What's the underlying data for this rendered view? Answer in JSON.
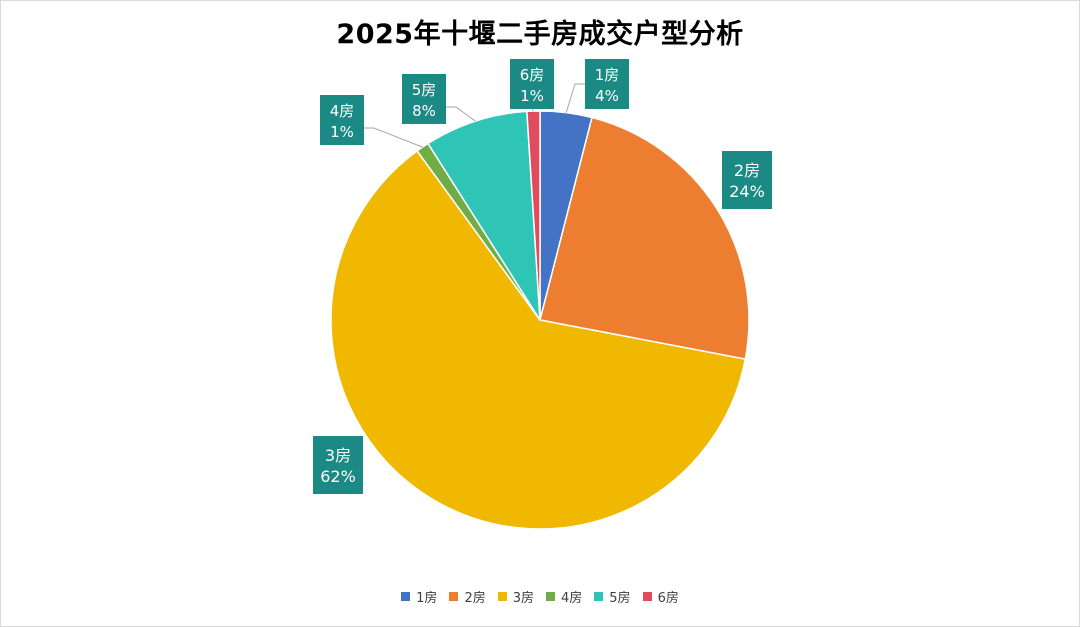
{
  "chart_data": {
    "type": "pie",
    "title": "2025年十堰二手房成交户型分析",
    "categories": [
      "1房",
      "2房",
      "3房",
      "4房",
      "5房",
      "6房"
    ],
    "values": [
      4,
      24,
      62,
      1,
      8,
      1
    ],
    "percent_labels": [
      "4%",
      "24%",
      "62%",
      "1%",
      "8%",
      "1%"
    ],
    "colors": [
      "#4472C4",
      "#ED7D31",
      "#F0B800",
      "#70AD47",
      "#2EC4B6",
      "#E04B5E"
    ],
    "label_box_color": "#1B8A84",
    "legend_position": "bottom"
  }
}
